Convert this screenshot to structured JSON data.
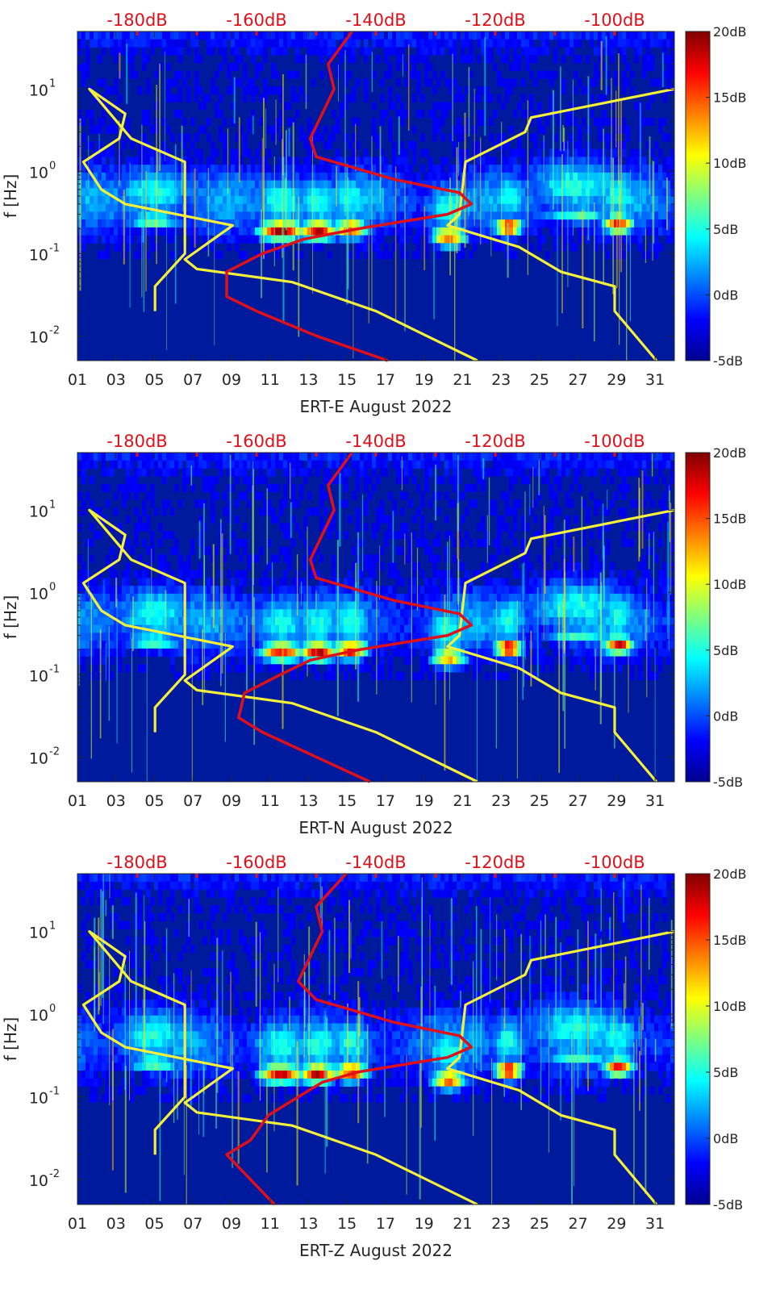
{
  "chart_data": [
    {
      "type": "heatmap",
      "station": "ERT-E",
      "xlabel": "ERT-E August 2022",
      "ylabel": "f [Hz]",
      "xlim": [
        1,
        32
      ],
      "x_ticks": [
        "01",
        "03",
        "05",
        "07",
        "09",
        "11",
        "13",
        "15",
        "17",
        "19",
        "21",
        "23",
        "25",
        "27",
        "29",
        "31"
      ],
      "y_scale": "log",
      "ylim": [
        0.005,
        50
      ],
      "y_ticks": [
        {
          "base": "10",
          "exp": "-2",
          "value": 0.01
        },
        {
          "base": "10",
          "exp": "-1",
          "value": 0.1
        },
        {
          "base": "10",
          "exp": "0",
          "value": 1
        },
        {
          "base": "10",
          "exp": "1",
          "value": 10
        }
      ],
      "colorbar": {
        "range_db": [
          -5,
          20
        ],
        "ticks": [
          "20dB",
          "15dB",
          "10dB",
          "5dB",
          "0dB",
          "-5dB"
        ]
      },
      "top_axis": {
        "label_ticks": [
          "-180dB",
          "-160dB",
          "-140dB",
          "-120dB",
          "-100dB"
        ],
        "range_db": [
          -190,
          -90
        ]
      },
      "energy_events": [
        {
          "day": 11.6,
          "freq": 0.19,
          "db": 20,
          "width_days": 1.2
        },
        {
          "day": 13.5,
          "freq": 0.19,
          "db": 19,
          "width_days": 1.0
        },
        {
          "day": 15.2,
          "freq": 0.2,
          "db": 16,
          "width_days": 0.9
        },
        {
          "day": 20.3,
          "freq": 0.16,
          "db": 16,
          "width_days": 0.9
        },
        {
          "day": 23.4,
          "freq": 0.21,
          "db": 18,
          "width_days": 0.7
        },
        {
          "day": 29.1,
          "freq": 0.23,
          "db": 17,
          "width_days": 0.8
        },
        {
          "day": 5.0,
          "freq": 0.25,
          "db": 7,
          "width_days": 1.5
        },
        {
          "day": 27.0,
          "freq": 0.3,
          "db": 6,
          "width_days": 2.0
        }
      ],
      "series": [
        {
          "name": "noise-model-upper",
          "color": "#f5f03a",
          "db": [
            -93,
            -100,
            -100,
            -109,
            -116,
            -128,
            -126,
            -125,
            -115,
            -114,
            -90
          ],
          "freq": [
            0.005,
            0.02,
            0.04,
            0.06,
            0.12,
            0.22,
            0.3,
            1.3,
            3.0,
            4.5,
            10
          ]
        },
        {
          "name": "noise-model-lower",
          "color": "#f5f03a",
          "db": [
            -123,
            -140,
            -154,
            -170,
            -172,
            -164,
            -182,
            -186,
            -189,
            -183,
            -182,
            -188,
            -181,
            -172,
            -172,
            -177,
            -177
          ],
          "freq": [
            0.005,
            0.02,
            0.045,
            0.065,
            0.085,
            0.22,
            0.4,
            0.6,
            1.3,
            2.5,
            5,
            10,
            2.5,
            1.3,
            0.1,
            0.04,
            0.02
          ]
        },
        {
          "name": "median-noise",
          "color": "#e0101a",
          "db": [
            -138,
            -150,
            -160,
            -165,
            -165,
            -159,
            -152,
            -143,
            -128,
            -124,
            -126,
            -137,
            -150,
            -151,
            -149,
            -147,
            -148,
            -144
          ],
          "freq": [
            0.005,
            0.01,
            0.02,
            0.03,
            0.06,
            0.1,
            0.15,
            0.2,
            0.3,
            0.4,
            0.55,
            0.8,
            1.5,
            2.5,
            5,
            10,
            20,
            50
          ]
        }
      ]
    },
    {
      "type": "heatmap",
      "station": "ERT-N",
      "xlabel": "ERT-N August 2022",
      "ylabel": "f [Hz]",
      "xlim": [
        1,
        32
      ],
      "x_ticks": [
        "01",
        "03",
        "05",
        "07",
        "09",
        "11",
        "13",
        "15",
        "17",
        "19",
        "21",
        "23",
        "25",
        "27",
        "29",
        "31"
      ],
      "y_scale": "log",
      "ylim": [
        0.005,
        50
      ],
      "y_ticks": [
        {
          "base": "10",
          "exp": "-2",
          "value": 0.01
        },
        {
          "base": "10",
          "exp": "-1",
          "value": 0.1
        },
        {
          "base": "10",
          "exp": "0",
          "value": 1
        },
        {
          "base": "10",
          "exp": "1",
          "value": 10
        }
      ],
      "colorbar": {
        "range_db": [
          -5,
          20
        ],
        "ticks": [
          "20dB",
          "15dB",
          "10dB",
          "5dB",
          "0dB",
          "-5dB"
        ]
      },
      "top_axis": {
        "label_ticks": [
          "-180dB",
          "-160dB",
          "-140dB",
          "-120dB",
          "-100dB"
        ],
        "range_db": [
          -190,
          -90
        ]
      },
      "energy_events": [
        {
          "day": 11.6,
          "freq": 0.19,
          "db": 17,
          "width_days": 1.2
        },
        {
          "day": 13.5,
          "freq": 0.19,
          "db": 19,
          "width_days": 1.0
        },
        {
          "day": 15.2,
          "freq": 0.2,
          "db": 18,
          "width_days": 0.9
        },
        {
          "day": 20.3,
          "freq": 0.16,
          "db": 14,
          "width_days": 0.9
        },
        {
          "day": 23.4,
          "freq": 0.21,
          "db": 19,
          "width_days": 0.7
        },
        {
          "day": 29.1,
          "freq": 0.23,
          "db": 18,
          "width_days": 0.8
        },
        {
          "day": 5.0,
          "freq": 0.25,
          "db": 7,
          "width_days": 1.5
        },
        {
          "day": 27.0,
          "freq": 0.3,
          "db": 6,
          "width_days": 2.0
        }
      ],
      "series": [
        {
          "name": "noise-model-upper",
          "color": "#f5f03a",
          "db": [
            -93,
            -100,
            -100,
            -109,
            -116,
            -128,
            -126,
            -125,
            -115,
            -114,
            -90
          ],
          "freq": [
            0.005,
            0.02,
            0.04,
            0.06,
            0.12,
            0.22,
            0.3,
            1.3,
            3.0,
            4.5,
            10
          ]
        },
        {
          "name": "noise-model-lower",
          "color": "#f5f03a",
          "db": [
            -123,
            -140,
            -154,
            -170,
            -172,
            -164,
            -182,
            -186,
            -189,
            -183,
            -182,
            -188,
            -181,
            -172,
            -172,
            -177,
            -177
          ],
          "freq": [
            0.005,
            0.02,
            0.045,
            0.065,
            0.085,
            0.22,
            0.4,
            0.6,
            1.3,
            2.5,
            5,
            10,
            2.5,
            1.3,
            0.1,
            0.04,
            0.02
          ]
        },
        {
          "name": "median-noise",
          "color": "#e0101a",
          "db": [
            -141,
            -150,
            -159,
            -163,
            -162,
            -156,
            -151,
            -143,
            -128,
            -124,
            -126,
            -137,
            -150,
            -151,
            -149,
            -147,
            -148,
            -144
          ],
          "freq": [
            0.005,
            0.01,
            0.02,
            0.03,
            0.06,
            0.1,
            0.15,
            0.2,
            0.3,
            0.4,
            0.55,
            0.8,
            1.5,
            2.5,
            5,
            10,
            20,
            50
          ]
        }
      ]
    },
    {
      "type": "heatmap",
      "station": "ERT-Z",
      "xlabel": "ERT-Z August 2022",
      "ylabel": "f [Hz]",
      "xlim": [
        1,
        32
      ],
      "x_ticks": [
        "01",
        "03",
        "05",
        "07",
        "09",
        "11",
        "13",
        "15",
        "17",
        "19",
        "21",
        "23",
        "25",
        "27",
        "29",
        "31"
      ],
      "y_scale": "log",
      "ylim": [
        0.005,
        50
      ],
      "y_ticks": [
        {
          "base": "10",
          "exp": "-2",
          "value": 0.01
        },
        {
          "base": "10",
          "exp": "-1",
          "value": 0.1
        },
        {
          "base": "10",
          "exp": "0",
          "value": 1
        },
        {
          "base": "10",
          "exp": "1",
          "value": 10
        }
      ],
      "colorbar": {
        "range_db": [
          -5,
          20
        ],
        "ticks": [
          "20dB",
          "15dB",
          "10dB",
          "5dB",
          "0dB",
          "-5dB"
        ]
      },
      "top_axis": {
        "label_ticks": [
          "-180dB",
          "-160dB",
          "-140dB",
          "-120dB",
          "-100dB"
        ],
        "range_db": [
          -190,
          -90
        ]
      },
      "energy_events": [
        {
          "day": 11.6,
          "freq": 0.19,
          "db": 18,
          "width_days": 1.2
        },
        {
          "day": 13.5,
          "freq": 0.19,
          "db": 19,
          "width_days": 1.0
        },
        {
          "day": 15.2,
          "freq": 0.2,
          "db": 17,
          "width_days": 0.9
        },
        {
          "day": 20.3,
          "freq": 0.16,
          "db": 15,
          "width_days": 0.9
        },
        {
          "day": 23.4,
          "freq": 0.21,
          "db": 19,
          "width_days": 0.7
        },
        {
          "day": 29.1,
          "freq": 0.23,
          "db": 17,
          "width_days": 0.8
        },
        {
          "day": 5.0,
          "freq": 0.25,
          "db": 7,
          "width_days": 1.5
        },
        {
          "day": 27.0,
          "freq": 0.3,
          "db": 6,
          "width_days": 2.0
        }
      ],
      "series": [
        {
          "name": "noise-model-upper",
          "color": "#f5f03a",
          "db": [
            -93,
            -100,
            -100,
            -109,
            -116,
            -128,
            -126,
            -125,
            -115,
            -114,
            -90
          ],
          "freq": [
            0.005,
            0.02,
            0.04,
            0.06,
            0.12,
            0.22,
            0.3,
            1.3,
            3.0,
            4.5,
            10
          ]
        },
        {
          "name": "noise-model-lower",
          "color": "#f5f03a",
          "db": [
            -123,
            -140,
            -154,
            -170,
            -172,
            -164,
            -182,
            -186,
            -189,
            -183,
            -182,
            -188,
            -181,
            -172,
            -172,
            -177,
            -177
          ],
          "freq": [
            0.005,
            0.02,
            0.045,
            0.065,
            0.085,
            0.22,
            0.4,
            0.6,
            1.3,
            2.5,
            5,
            10,
            2.5,
            1.3,
            0.1,
            0.04,
            0.02
          ]
        },
        {
          "name": "median-noise",
          "color": "#e0101a",
          "db": [
            -157,
            -161,
            -165,
            -161,
            -158,
            -153,
            -149,
            -143,
            -128,
            -124,
            -126,
            -137,
            -150,
            -153,
            -151,
            -149,
            -150,
            -145
          ],
          "freq": [
            0.005,
            0.01,
            0.02,
            0.03,
            0.06,
            0.1,
            0.15,
            0.2,
            0.3,
            0.4,
            0.55,
            0.8,
            1.5,
            2.5,
            5,
            10,
            20,
            50
          ]
        }
      ]
    }
  ]
}
